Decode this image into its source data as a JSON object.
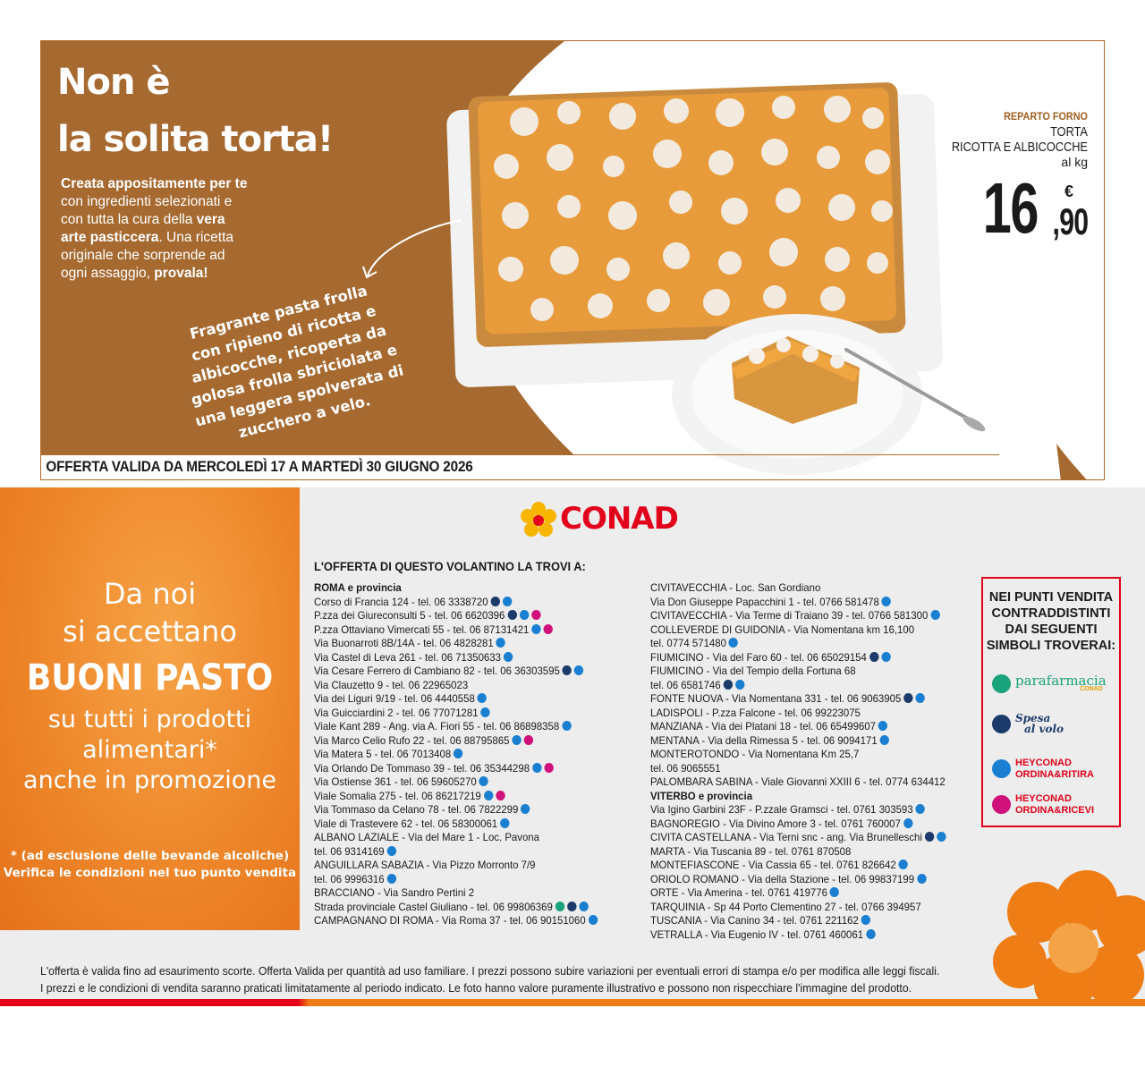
{
  "promo": {
    "headline_1": "Non è",
    "headline_2": "la solita torta!",
    "intro": {
      "p1": "Creata appositamente per te",
      "p2": "con ingredienti selezionati e",
      "p3a": "con tutta la cura della ",
      "p3b": "vera",
      "p4a": "arte pasticcera",
      "p4b": ". Una ricetta",
      "p5": "originale che sorprende ad",
      "p6a": "ogni assaggio, ",
      "p6b": "provala!"
    },
    "pastry_note": "Fragrante pasta frolla con ripieno di ricotta e albicocche, ricoperta da golosa frolla sbriciolata e una leggera spolverata di zucchero a velo.",
    "validity": "OFFERTA VALIDA DA MERCOLEDÌ 17 A MARTEDÌ 30 GIUGNO 2026",
    "product": {
      "department": "REPARTO FORNO",
      "name_1": "TORTA",
      "name_2": "RICOTTA E ALBICOCCHE",
      "unit": "al kg",
      "price_int": "16",
      "price_currency": "€",
      "price_dec": ",90"
    }
  },
  "buoni": {
    "l1": "Da noi",
    "l2": "si accettano",
    "l3": "BUONI PASTO",
    "l4": "su tutti i prodotti",
    "l5": "alimentari*",
    "l6": "anche in promozione",
    "n1": "* (ad esclusione delle bevande alcoliche)",
    "n2": "Verifica le condizioni nel tuo punto vendita"
  },
  "brand": "CONAD",
  "stores_title": "L'OFFERTA DI QUESTO VOLANTINO LA TROVI A:",
  "stores_col1": [
    {
      "t": "ROMA e provincia",
      "h": true,
      "d": []
    },
    {
      "t": "Corso di Francia 124 - tel. 06 3338720",
      "d": [
        "navy",
        "blue"
      ]
    },
    {
      "t": "P.zza dei Giureconsulti 5 - tel. 06 6620396",
      "d": [
        "navy",
        "blue",
        "mag"
      ]
    },
    {
      "t": "P.zza Ottaviano Vimercati 55 - tel. 06 87131421",
      "d": [
        "blue",
        "mag"
      ]
    },
    {
      "t": "Via Buonarroti 8B/14A - tel. 06 4828281",
      "d": [
        "blue"
      ]
    },
    {
      "t": "Via Castel di Leva 261 - tel. 06 71350633",
      "d": [
        "blue"
      ]
    },
    {
      "t": "Via Cesare Ferrero di Cambiano 82 - tel. 06 36303595",
      "d": [
        "navy",
        "blue"
      ]
    },
    {
      "t": "Via Clauzetto 9 - tel. 06 22965023",
      "d": []
    },
    {
      "t": "Via dei Liguri 9/19 - tel. 06 4440558",
      "d": [
        "blue"
      ]
    },
    {
      "t": "Via Guicciardini 2 - tel. 06 77071281",
      "d": [
        "blue"
      ]
    },
    {
      "t": "Viale Kant 289 - Ang. via A. Fiori 55 - tel. 06 86898358",
      "d": [
        "blue"
      ]
    },
    {
      "t": "Via Marco Celio Rufo 22 - tel. 06 88795865",
      "d": [
        "blue",
        "mag"
      ]
    },
    {
      "t": "Via Matera 5 - tel. 06 7013408",
      "d": [
        "blue"
      ]
    },
    {
      "t": "Via Orlando De Tommaso 39 - tel. 06 35344298",
      "d": [
        "blue",
        "mag"
      ]
    },
    {
      "t": "Via Ostiense 361 - tel. 06 59605270",
      "d": [
        "blue"
      ]
    },
    {
      "t": "Viale Somalia 275 - tel. 06 86217219",
      "d": [
        "blue",
        "mag"
      ]
    },
    {
      "t": "Via Tommaso da Celano 78 - tel. 06 7822299",
      "d": [
        "blue"
      ]
    },
    {
      "t": "Viale di Trastevere 62 - tel. 06 58300061",
      "d": [
        "blue"
      ]
    },
    {
      "t": "ALBANO LAZIALE - Via del Mare 1 - Loc. Pavona",
      "d": []
    },
    {
      "t": "tel. 06 9314169",
      "d": [
        "blue"
      ]
    },
    {
      "t": "ANGUILLARA SABAZIA - Via Pizzo Morronto 7/9",
      "d": []
    },
    {
      "t": "tel. 06 9996316",
      "d": [
        "blue"
      ]
    },
    {
      "t": "BRACCIANO - Via Sandro Pertini 2",
      "d": []
    },
    {
      "t": "Strada provinciale Castel Giuliano - tel. 06 99806369",
      "d": [
        "green",
        "navy",
        "blue"
      ]
    },
    {
      "t": "CAMPAGNANO DI ROMA - Via Roma 37 - tel. 06 90151060",
      "d": [
        "blue"
      ]
    }
  ],
  "stores_col2": [
    {
      "t": "CIVITAVECCHIA - Loc. San Gordiano",
      "d": []
    },
    {
      "t": "Via Don Giuseppe Papacchini 1 - tel. 0766 581478",
      "d": [
        "blue"
      ]
    },
    {
      "t": "CIVITAVECCHIA - Via Terme di Traiano 39 - tel. 0766 581300",
      "d": [
        "blue"
      ]
    },
    {
      "t": "COLLEVERDE DI GUIDONIA - Via Nomentana km 16,100",
      "d": []
    },
    {
      "t": "tel. 0774 571480",
      "d": [
        "blue"
      ]
    },
    {
      "t": "FIUMICINO - Via del Faro 60 - tel. 06 65029154",
      "d": [
        "navy",
        "blue"
      ]
    },
    {
      "t": "FIUMICINO - Via del Tempio della Fortuna 68",
      "d": []
    },
    {
      "t": "tel. 06 6581746",
      "d": [
        "navy",
        "blue"
      ]
    },
    {
      "t": "FONTE NUOVA - Via Nomentana 331 - tel. 06 9063905",
      "d": [
        "navy",
        "blue"
      ]
    },
    {
      "t": "LADISPOLI - P.zza Falcone - tel. 06 99223075",
      "d": []
    },
    {
      "t": "MANZIANA - Via dei Platani 18 - tel. 06 65499607",
      "d": [
        "blue"
      ]
    },
    {
      "t": "MENTANA - Via della Rimessa 5 - tel. 06 9094171",
      "d": [
        "blue"
      ]
    },
    {
      "t": "MONTEROTONDO - Via Nomentana Km 25,7",
      "d": []
    },
    {
      "t": "tel. 06 9065551",
      "d": []
    },
    {
      "t": "PALOMBARA SABINA - Viale Giovanni XXIII 6 - tel. 0774 634412",
      "d": []
    },
    {
      "t": "VITERBO e provincia",
      "h": true,
      "d": []
    },
    {
      "t": "Via Igino Garbini 23F - P.zzale Gramsci - tel. 0761 303593",
      "d": [
        "blue"
      ]
    },
    {
      "t": "BAGNOREGIO - Via Divino Amore 3 - tel. 0761 760007",
      "d": [
        "blue"
      ]
    },
    {
      "t": "CIVITA CASTELLANA - Via Terni snc - ang. Via Brunelleschi",
      "d": [
        "navy",
        "blue"
      ]
    },
    {
      "t": "MARTA - Via Tuscania 89 - tel. 0761 870508",
      "d": []
    },
    {
      "t": "MONTEFIASCONE - Via Cassia 65 - tel. 0761 826642",
      "d": [
        "blue"
      ]
    },
    {
      "t": "ORIOLO ROMANO - Via della Stazione - tel. 06 99837199",
      "d": [
        "blue"
      ]
    },
    {
      "t": "ORTE - Via Amerina - tel. 0761 419776",
      "d": [
        "blue"
      ]
    },
    {
      "t": "TARQUINIA - Sp 44 Porto Clementino 27 - tel. 0766 394957",
      "d": []
    },
    {
      "t": "TUSCANIA - Via Canino 34 - tel. 0761 221162",
      "d": [
        "blue"
      ]
    },
    {
      "t": "VETRALLA - Via Eugenio IV - tel. 0761 460061",
      "d": [
        "blue"
      ]
    }
  ],
  "legend": {
    "title": "NEI PUNTI VENDITA CONTRADDISTINTI DAI SEGUENTI SIMBOLI TROVERAI:",
    "parafarmacia": "parafarmacia",
    "parafarmacia_sub": "CONAD",
    "spesa_1": "Spesa",
    "spesa_2": "al volo",
    "hey1_a": "HEYCONAD",
    "hey1_b": "ORDINA&RITIRA",
    "hey2_a": "HEYCONAD",
    "hey2_b": "ORDINA&RICEVI"
  },
  "disclaimer_1": "L'offerta è valida fino ad esaurimento scorte. Offerta Valida per quantità ad uso familiare. I prezzi possono subire variazioni per eventuali errori di stampa e/o per modifica alle leggi fiscali.",
  "disclaimer_2": "I prezzi e le condizioni di vendita saranno praticati limitatamente al periodo indicato. Le foto hanno valore puramente illustrativo e possono non rispecchiare l'immagine del prodotto.",
  "colors": {
    "brown": "#a66a31",
    "conad_red": "#e2001a",
    "orange": "#ef7d16",
    "dot_navy": "#1c3a6a",
    "dot_blue": "#1a7fd0",
    "dot_magenta": "#d0117a",
    "dot_green": "#1aa37a"
  }
}
